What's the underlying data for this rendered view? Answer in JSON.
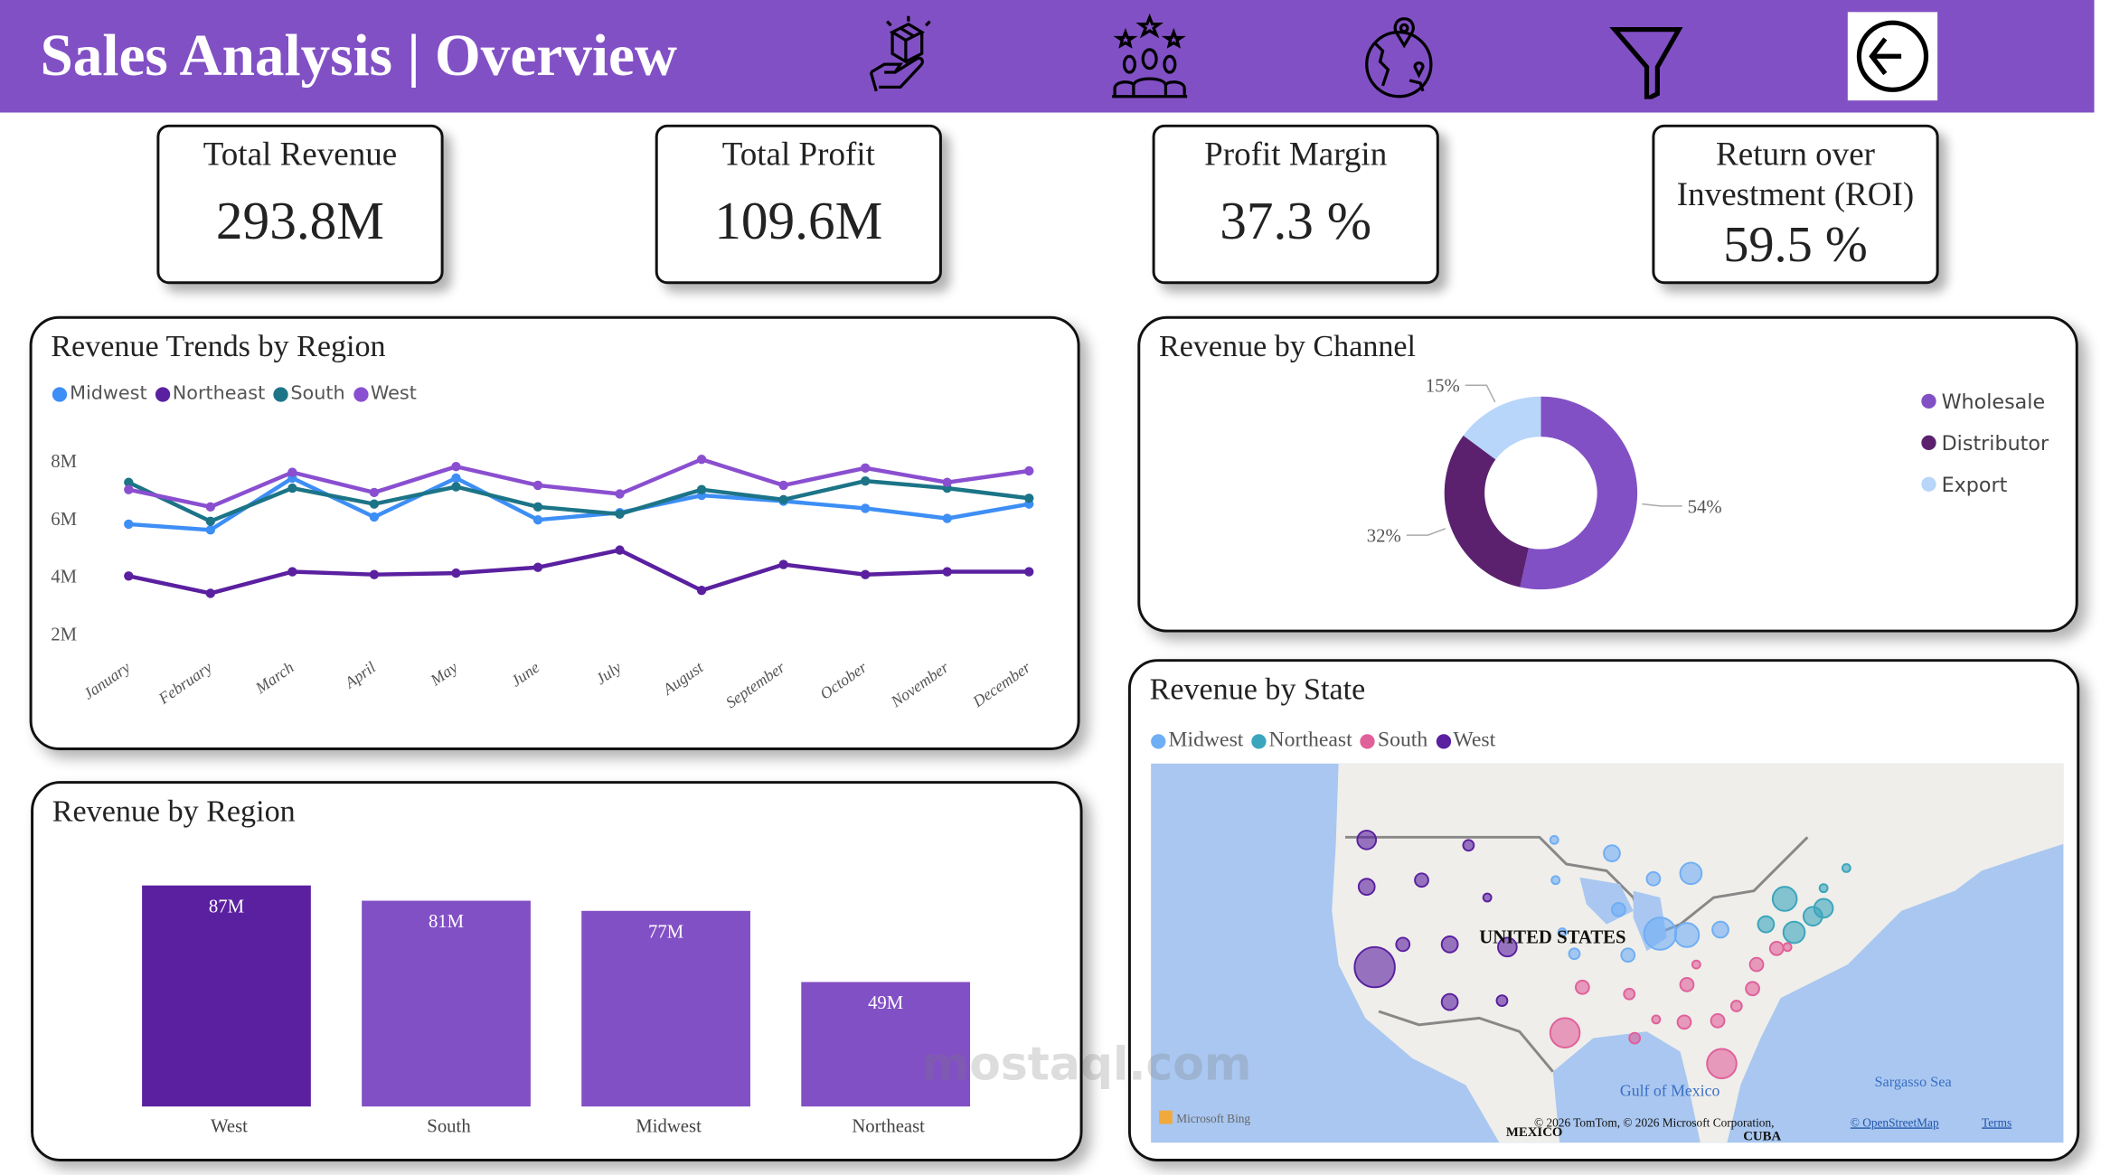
{
  "header": {
    "title": "Sales Analysis | Overview",
    "icons": [
      "product-hand-icon",
      "customers-stars-icon",
      "globe-location-icon",
      "filter-icon",
      "back-arrow-icon"
    ],
    "bg_color": "#8250C5"
  },
  "kpis": [
    {
      "label": "Total Revenue",
      "value": "293.8M"
    },
    {
      "label": "Total Profit",
      "value": "109.6M"
    },
    {
      "label": "Profit Margin",
      "value": "37.3 %"
    },
    {
      "label": "Return over Investment (ROI)",
      "value": "59.5 %"
    }
  ],
  "chart_data": [
    {
      "type": "line",
      "title": "Revenue Trends by Region",
      "legend_position": "top-left",
      "categories": [
        "January",
        "February",
        "March",
        "April",
        "May",
        "June",
        "July",
        "August",
        "September",
        "October",
        "November",
        "December"
      ],
      "y_ticks": [
        "2M",
        "4M",
        "6M",
        "8M"
      ],
      "ylim": [
        2,
        8
      ],
      "units": "M",
      "series": [
        {
          "name": "Midwest",
          "color": "#3D8EF5",
          "values": [
            5.8,
            5.6,
            7.4,
            6.05,
            7.4,
            5.95,
            6.2,
            6.8,
            6.6,
            6.35,
            6.0,
            6.5
          ]
        },
        {
          "name": "Northeast",
          "color": "#5A20A0",
          "values": [
            4.0,
            3.4,
            4.15,
            4.05,
            4.1,
            4.3,
            4.9,
            3.5,
            4.4,
            4.05,
            4.15,
            4.15
          ]
        },
        {
          "name": "South",
          "color": "#1C7487",
          "values": [
            7.25,
            5.9,
            7.05,
            6.5,
            7.1,
            6.4,
            6.15,
            7.0,
            6.65,
            7.3,
            7.05,
            6.7
          ]
        },
        {
          "name": "West",
          "color": "#8A4FD0",
          "values": [
            7.0,
            6.4,
            7.6,
            6.9,
            7.8,
            7.15,
            6.85,
            8.05,
            7.15,
            7.75,
            7.25,
            7.65
          ]
        }
      ]
    },
    {
      "type": "pie",
      "title": "Revenue by Channel",
      "legend_position": "right",
      "slices": [
        {
          "name": "Wholesale",
          "value": 54,
          "label": "54%",
          "color": "#8250C5"
        },
        {
          "name": "Distributor",
          "value": 32,
          "label": "32%",
          "color": "#5B216F"
        },
        {
          "name": "Export",
          "value": 15,
          "label": "15%",
          "color": "#B8D5FA"
        }
      ]
    },
    {
      "type": "bar",
      "title": "Revenue by Region",
      "units": "M",
      "categories": [
        "West",
        "South",
        "Midwest",
        "Northeast"
      ],
      "values": [
        87,
        81,
        77,
        49
      ],
      "labels": [
        "87M",
        "81M",
        "77M",
        "49M"
      ],
      "colors": [
        "#5B20A0",
        "#8250C5",
        "#8250C5",
        "#8250C5"
      ]
    }
  ],
  "map": {
    "title": "Revenue by State",
    "legend": [
      {
        "name": "Midwest",
        "color": "#6FAEF5"
      },
      {
        "name": "Northeast",
        "color": "#3AA5BC"
      },
      {
        "name": "South",
        "color": "#E0609A"
      },
      {
        "name": "West",
        "color": "#5A20A0"
      }
    ],
    "labels": {
      "country": "UNITED STATES",
      "gulf": "Gulf of Mexico",
      "sea": "Sargasso Sea",
      "mexico": "MEXICO",
      "cuba": "CUBA"
    },
    "bing": "Microsoft Bing",
    "copyright": "© 2026 TomTom, © 2026 Microsoft Corporation,",
    "osm_link": "© OpenStreetMap",
    "terms_link": "Terms"
  },
  "watermark": "mostaql.com"
}
